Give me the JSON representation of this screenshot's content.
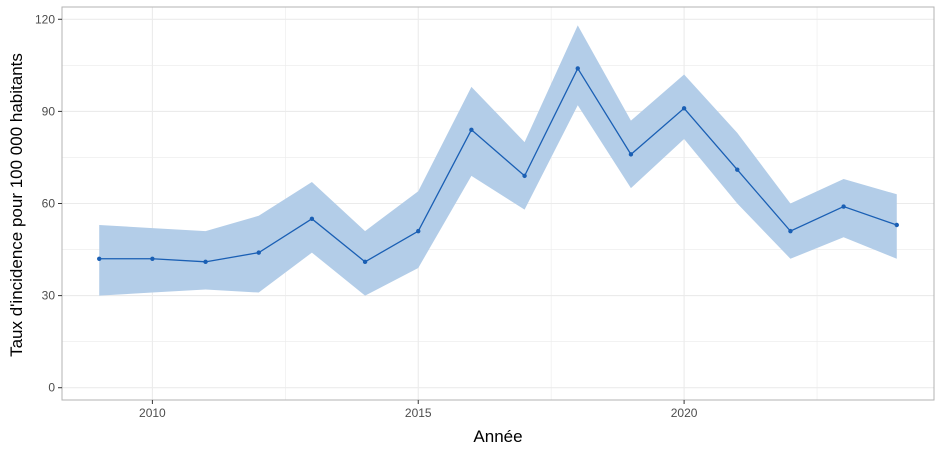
{
  "chart_data": {
    "type": "line",
    "title": "",
    "xlabel": "Année",
    "ylabel": "Taux d'incidence pour 100 000 habitants",
    "xlim": [
      2008.3,
      2024.7
    ],
    "ylim": [
      -4,
      124
    ],
    "x_ticks": [
      2010,
      2015,
      2020
    ],
    "y_ticks": [
      0,
      30,
      60,
      90,
      120
    ],
    "grid": true,
    "x": [
      2009,
      2010,
      2011,
      2012,
      2013,
      2014,
      2015,
      2016,
      2017,
      2018,
      2019,
      2020,
      2021,
      2022,
      2023,
      2024
    ],
    "series": [
      {
        "values": [
          42,
          42,
          41,
          44,
          55,
          41,
          51,
          84,
          69,
          104,
          76,
          91,
          71,
          51,
          59,
          53
        ],
        "lower": [
          30,
          31,
          32,
          31,
          44,
          30,
          39,
          69,
          58,
          92,
          65,
          81,
          60,
          42,
          49,
          42
        ],
        "upper": [
          53,
          52,
          51,
          56,
          67,
          51,
          64,
          98,
          80,
          118,
          87,
          102,
          83,
          60,
          68,
          63
        ]
      }
    ],
    "colors": {
      "line": "#1a5fb4",
      "ribbon": "#b3cde8",
      "grid": "#ebebeb",
      "panel_border": "#b3b3b3"
    }
  }
}
